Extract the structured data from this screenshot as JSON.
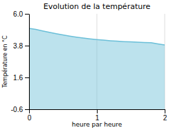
{
  "chart_data": {
    "type": "area",
    "title": "Evolution de la température",
    "xlabel": "heure par heure",
    "ylabel": "Température en °C",
    "x": [
      0.0,
      0.1,
      0.2,
      0.3,
      0.4,
      0.5,
      0.6,
      0.7,
      0.8,
      0.9,
      1.0,
      1.1,
      1.2,
      1.3,
      1.4,
      1.5,
      1.6,
      1.7,
      1.8,
      1.9,
      2.0
    ],
    "values": [
      5.0,
      4.92,
      4.82,
      4.72,
      4.63,
      4.54,
      4.46,
      4.39,
      4.33,
      4.27,
      4.22,
      4.18,
      4.14,
      4.11,
      4.08,
      4.06,
      4.04,
      4.02,
      4.0,
      3.92,
      3.85
    ],
    "color": "#6bbfd8",
    "xlim": [
      0,
      2
    ],
    "ylim": [
      -0.6,
      6.0
    ],
    "xticks": [
      0,
      1,
      2
    ],
    "yticks": [
      -0.6,
      1.6,
      3.8,
      {
        "value": 6.0,
        "label": "6.0"
      }
    ],
    "grid": "x"
  }
}
